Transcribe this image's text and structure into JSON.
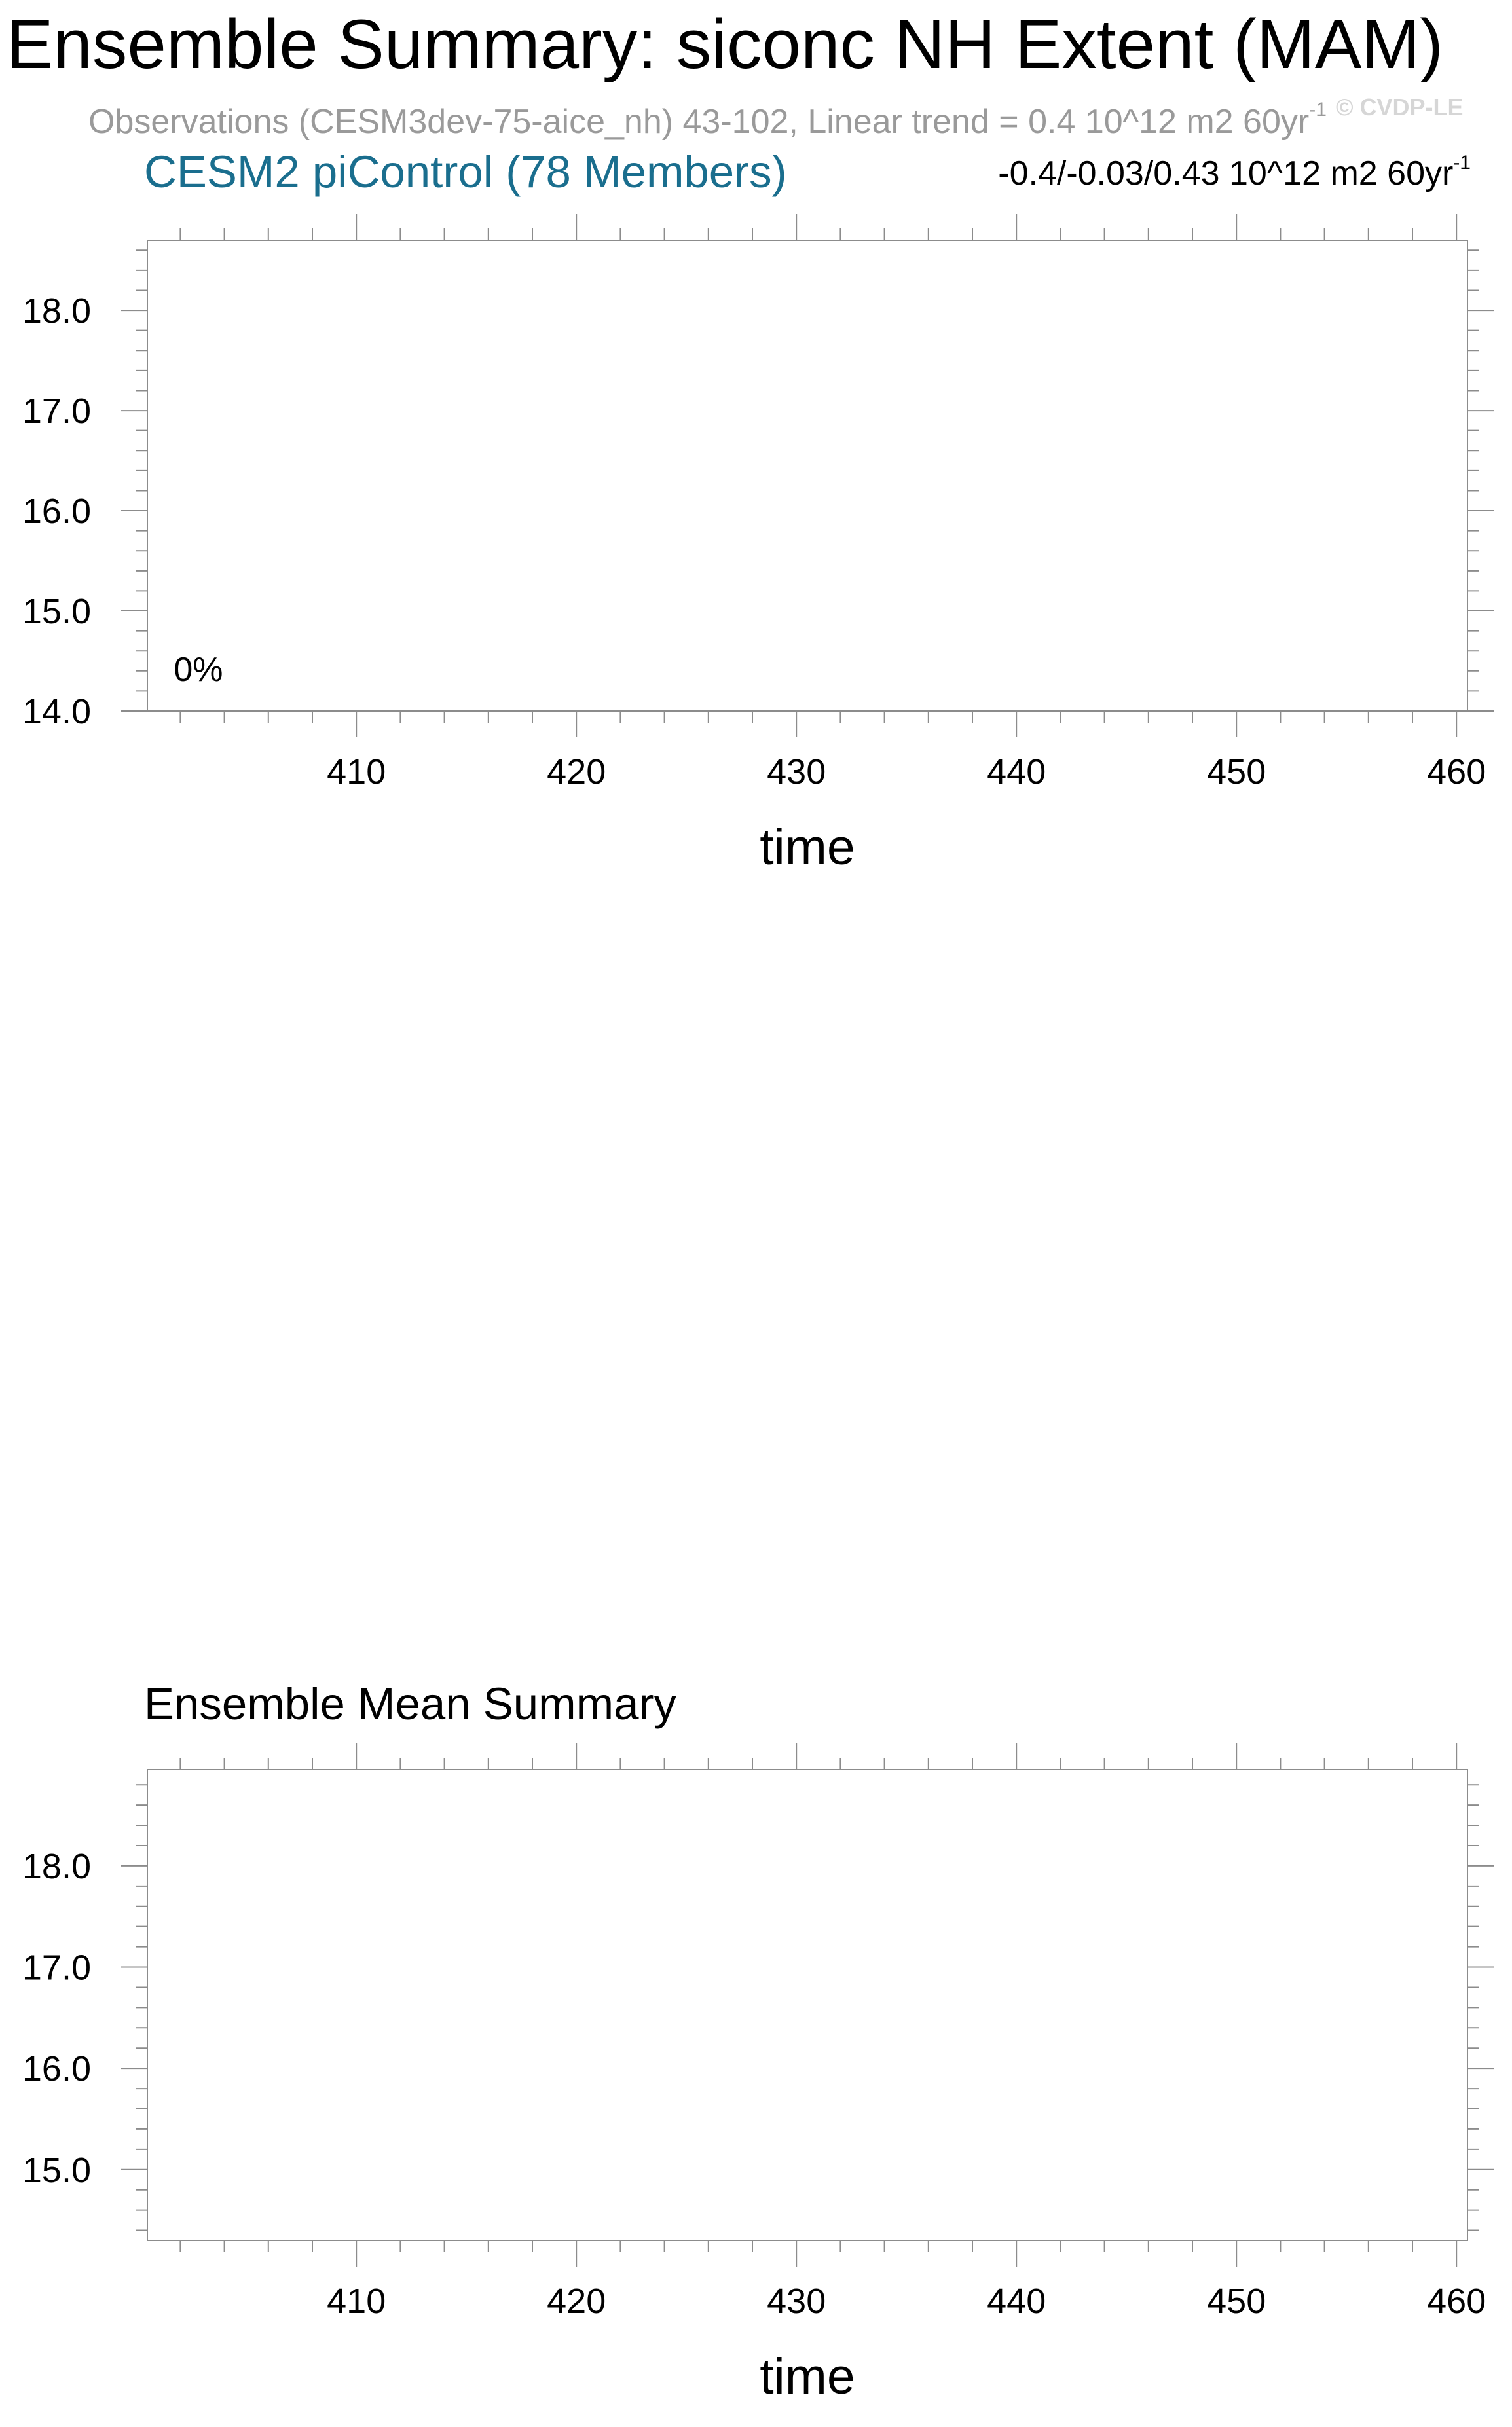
{
  "title": "Ensemble Summary: siconc NH Extent (MAM)",
  "observations": {
    "text": "Observations (CESM3dev-75-aice_nh) 43-102, Linear trend = 0.4 10^12 m2 60yr",
    "superscript": "-1"
  },
  "watermark": "© CVDP-LE",
  "chart_data": [
    {
      "type": "line",
      "title": "CESM2 piControl (78 Members)",
      "trend_label": "-0.4/-0.03/0.43 10^12 m2 60yr",
      "trend_superscript": "-1",
      "annotation": "0%",
      "xlabel": "time",
      "ylabel": "",
      "xlim": [
        400.5,
        460.5
      ],
      "ylim": [
        14.0,
        18.7
      ],
      "x_ticks": [
        410,
        420,
        430,
        440,
        450,
        460
      ],
      "y_ticks": [
        14.0,
        15.0,
        16.0,
        17.0,
        18.0
      ],
      "series": [],
      "grid": false
    },
    {
      "type": "line",
      "title": "Ensemble Mean Summary",
      "xlabel": "time",
      "ylabel": "",
      "xlim": [
        400.5,
        460.5
      ],
      "ylim": [
        14.3,
        18.95
      ],
      "x_ticks": [
        410,
        420,
        430,
        440,
        450,
        460
      ],
      "y_ticks": [
        15.0,
        16.0,
        17.0,
        18.0
      ],
      "series": [],
      "grid": false
    }
  ]
}
